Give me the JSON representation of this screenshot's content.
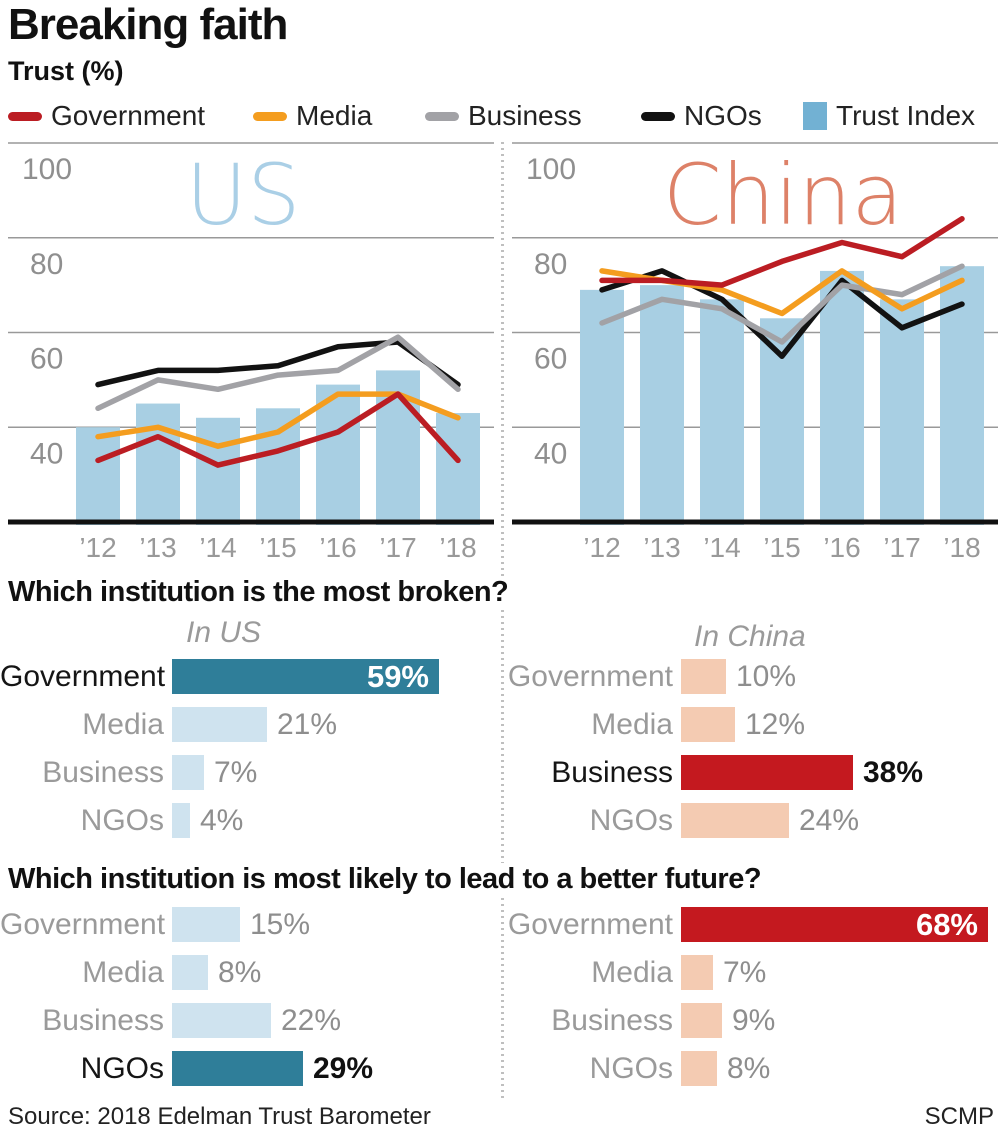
{
  "page": {
    "title": "Breaking faith",
    "subtitle": "Trust (%)"
  },
  "legend": {
    "items": [
      {
        "label": "Government",
        "color": "#bb1d23",
        "swatch": "line"
      },
      {
        "label": "Media",
        "color": "#f49d1f",
        "swatch": "line"
      },
      {
        "label": "Business",
        "color": "#a2a2a6",
        "swatch": "line"
      },
      {
        "label": "NGOs",
        "color": "#121212",
        "swatch": "line"
      },
      {
        "label": "Trust Index",
        "color": "#72b1d3",
        "swatch": "square"
      }
    ]
  },
  "chart_data": [
    {
      "type": "bar-line-combo",
      "region_label": "US",
      "watermark_color": "#aacfe6",
      "watermark_x": 235,
      "categories": [
        "’12",
        "’13",
        "’14",
        "’15",
        "’16",
        "’17",
        "’18"
      ],
      "ylim": [
        20,
        100
      ],
      "yticks": [
        40,
        60,
        80,
        100
      ],
      "grid": true,
      "legend_position": "top",
      "bars": {
        "name": "Trust Index",
        "color": "#a8cfe3",
        "values": [
          40,
          45,
          42,
          44,
          49,
          52,
          43
        ]
      },
      "series": [
        {
          "name": "NGOs",
          "color": "#121212",
          "values": [
            49,
            52,
            52,
            53,
            57,
            58,
            49
          ]
        },
        {
          "name": "Business",
          "color": "#a2a2a6",
          "values": [
            44,
            50,
            48,
            51,
            52,
            59,
            48
          ]
        },
        {
          "name": "Media",
          "color": "#f49d1f",
          "values": [
            38,
            40,
            36,
            39,
            47,
            47,
            42
          ]
        },
        {
          "name": "Government",
          "color": "#bb1d23",
          "values": [
            33,
            38,
            32,
            35,
            39,
            47,
            33
          ]
        }
      ]
    },
    {
      "type": "bar-line-combo",
      "region_label": "China",
      "watermark_color": "#dd8168",
      "watermark_x": 271,
      "categories": [
        "’12",
        "’13",
        "’14",
        "’15",
        "’16",
        "’17",
        "’18"
      ],
      "ylim": [
        20,
        100
      ],
      "yticks": [
        40,
        60,
        80,
        100
      ],
      "grid": true,
      "legend_position": "top",
      "bars": {
        "name": "Trust Index",
        "color": "#a8cfe3",
        "values": [
          69,
          70,
          67,
          63,
          73,
          67,
          74
        ]
      },
      "series": [
        {
          "name": "NGOs",
          "color": "#121212",
          "values": [
            69,
            73,
            67,
            55,
            71,
            61,
            66
          ]
        },
        {
          "name": "Business",
          "color": "#a2a2a6",
          "values": [
            62,
            67,
            65,
            58,
            70,
            68,
            74
          ]
        },
        {
          "name": "Media",
          "color": "#f49d1f",
          "values": [
            73,
            71,
            69,
            64,
            73,
            65,
            71
          ]
        },
        {
          "name": "Government",
          "color": "#bb1d23",
          "values": [
            71,
            71,
            70,
            75,
            79,
            76,
            84
          ]
        }
      ]
    },
    {
      "type": "bar",
      "title": "Which institution is the most broken?",
      "groups": [
        {
          "region": "In US",
          "categories": [
            "Government",
            "Media",
            "Business",
            "NGOs"
          ],
          "values": [
            59,
            21,
            7,
            4
          ],
          "highlighted": "Government"
        },
        {
          "region": "In China",
          "categories": [
            "Government",
            "Media",
            "Business",
            "NGOs"
          ],
          "values": [
            10,
            12,
            38,
            24
          ],
          "highlighted": "Business"
        }
      ]
    },
    {
      "type": "bar",
      "title": "Which institution is most likely to lead to a better future?",
      "groups": [
        {
          "region": "US",
          "categories": [
            "Government",
            "Media",
            "Business",
            "NGOs"
          ],
          "values": [
            15,
            8,
            22,
            29
          ],
          "highlighted": "NGOs"
        },
        {
          "region": "China",
          "categories": [
            "Government",
            "Media",
            "Business",
            "NGOs"
          ],
          "values": [
            68,
            7,
            9,
            8
          ],
          "highlighted": "Government"
        }
      ]
    }
  ],
  "broken": {
    "title": "Which institution is the most broken?",
    "us": {
      "subtitle": "In US",
      "rows": [
        {
          "label": "Government",
          "pct": 59,
          "value": "59%",
          "highlight": true,
          "label_dark": true,
          "value_inside": true
        },
        {
          "label": "Media",
          "pct": 21,
          "value": "21%"
        },
        {
          "label": "Business",
          "pct": 7,
          "value": "7%"
        },
        {
          "label": "NGOs",
          "pct": 4,
          "value": "4%"
        }
      ]
    },
    "china": {
      "subtitle": "In China",
      "rows": [
        {
          "label": "Government",
          "pct": 10,
          "value": "10%"
        },
        {
          "label": "Media",
          "pct": 12,
          "value": "12%"
        },
        {
          "label": "Business",
          "pct": 38,
          "value": "38%",
          "highlight": true,
          "label_dark": true
        },
        {
          "label": "NGOs",
          "pct": 24,
          "value": "24%"
        }
      ]
    }
  },
  "future": {
    "title": "Which institution is most likely to lead to a better future?",
    "us": {
      "rows": [
        {
          "label": "Government",
          "pct": 15,
          "value": "15%"
        },
        {
          "label": "Media",
          "pct": 8,
          "value": "8%"
        },
        {
          "label": "Business",
          "pct": 22,
          "value": "22%"
        },
        {
          "label": "NGOs",
          "pct": 29,
          "value": "29%",
          "highlight": true,
          "label_dark": true
        }
      ]
    },
    "china": {
      "rows": [
        {
          "label": "Government",
          "pct": 68,
          "value": "68%",
          "highlight": true,
          "value_inside": true
        },
        {
          "label": "Media",
          "pct": 7,
          "value": "7%"
        },
        {
          "label": "Business",
          "pct": 9,
          "value": "9%"
        },
        {
          "label": "NGOs",
          "pct": 8,
          "value": "8%"
        }
      ]
    }
  },
  "colors": {
    "us_highlight": "#2f7e99",
    "us_light": "#cfe3ef",
    "china_highlight": "#c4191f",
    "china_light": "#f4cbb2",
    "grid": "#999999",
    "tick_text": "#8f8f8f",
    "axis_black": "#111111",
    "year_text": "#999999"
  },
  "footer": {
    "source": "Source: 2018 Edelman Trust Barometer",
    "credit": "SCMP"
  }
}
